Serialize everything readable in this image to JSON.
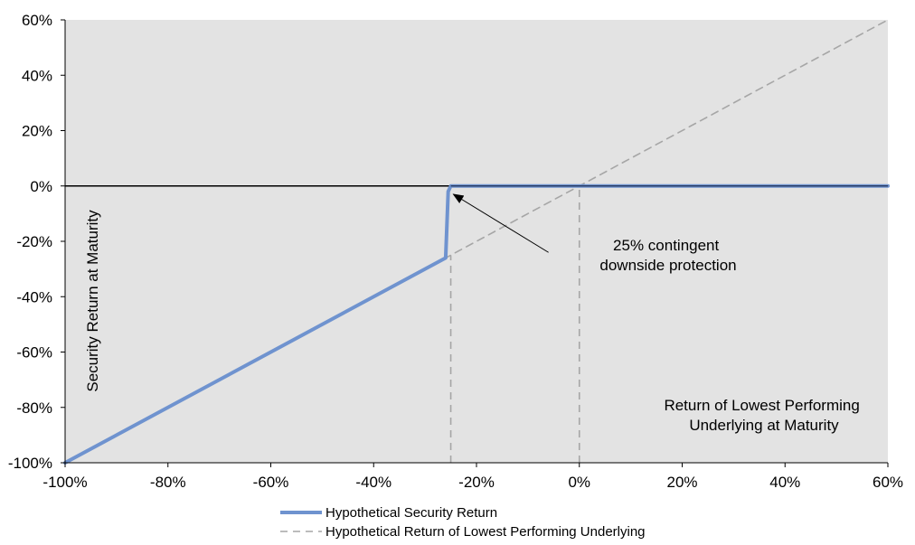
{
  "chart_data": {
    "type": "line",
    "title": "",
    "xlabel": "Return of Lowest Performing Underlying at Maturity",
    "xlabel_lines": [
      "Return of Lowest Performing",
      "Underlying at Maturity"
    ],
    "ylabel": "Security Return at Maturity",
    "xlim": [
      -100,
      60
    ],
    "ylim": [
      -100,
      60
    ],
    "x_ticks": [
      "-100%",
      "-80%",
      "-60%",
      "-40%",
      "-20%",
      "0%",
      "20%",
      "40%",
      "60%"
    ],
    "y_ticks": [
      "60%",
      "40%",
      "20%",
      "0%",
      "-20%",
      "-40%",
      "-60%",
      "-80%",
      "-100%"
    ],
    "grid": false,
    "legend_position": "bottom",
    "series": [
      {
        "name": "Hypothetical Security Return",
        "color": "#6f93cf",
        "style": "solid",
        "x": [
          -100,
          -26,
          -25.5,
          -25,
          60
        ],
        "y": [
          -100,
          -26,
          -2,
          0,
          0
        ]
      },
      {
        "name": "Hypothetical Return of Lowest Performing Underlying",
        "color": "#a6a6a6",
        "style": "dashed",
        "x": [
          -100,
          60
        ],
        "y": [
          -100,
          60
        ]
      }
    ],
    "reference_lines": [
      {
        "orientation": "vertical",
        "x": -25,
        "from_y": -100,
        "to_y": -25,
        "color": "#a6a6a6",
        "style": "dashed"
      },
      {
        "orientation": "vertical",
        "x": 0,
        "from_y": -100,
        "to_y": 0,
        "color": "#a6a6a6",
        "style": "dashed"
      },
      {
        "orientation": "horizontal",
        "y": 0,
        "color": "#000000",
        "style": "solid"
      }
    ],
    "annotations": [
      {
        "text_lines": [
          "25% contingent",
          "downside protection"
        ],
        "arrow_from": [
          -6,
          -24
        ],
        "arrow_to": [
          -24.5,
          -3
        ]
      }
    ],
    "colors": {
      "plot_background": "#e3e3e3",
      "security_line": "#6f93cf",
      "underlying_line": "#a6a6a6",
      "zero_line": "#000000"
    }
  }
}
